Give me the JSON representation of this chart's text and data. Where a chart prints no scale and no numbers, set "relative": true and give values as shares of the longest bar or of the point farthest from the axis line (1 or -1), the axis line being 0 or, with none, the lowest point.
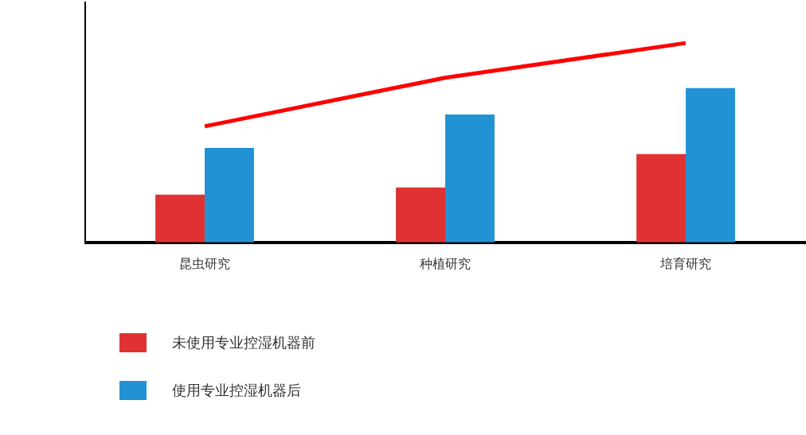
{
  "chart_data": {
    "type": "bar",
    "relative": true,
    "categories": [
      "昆虫研究",
      "种植研究",
      "培育研究"
    ],
    "legend": "bottom left",
    "grid": false,
    "series": [
      {
        "name": "未使用专业控湿机器前",
        "color": "#e03232",
        "values": [
          0.24,
          0.275,
          0.443
        ]
      },
      {
        "name": "使用专业控湿机器后",
        "color": "#2292d4",
        "values": [
          0.474,
          0.641,
          0.774
        ]
      },
      {
        "type": "line",
        "color": "#ff0000",
        "values": [
          0.582,
          0.826,
          1
        ],
        "marker": "none"
      }
    ]
  }
}
